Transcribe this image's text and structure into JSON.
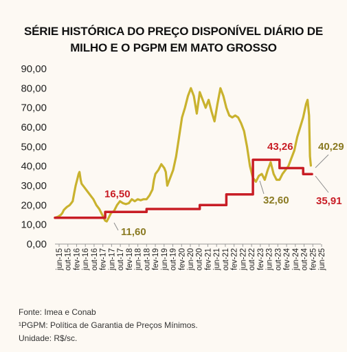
{
  "title_line1": "SÉRIE HISTÓRICA DO PREÇO DISPONÍVEL DIÁRIO DE",
  "title_line2": "MILHO E O PGPM EM MATO GROSSO",
  "footer": {
    "source": "Fonte: Imea e Conab",
    "note": "¹PGPM: Política de Garantia de Preços Mínimos.",
    "unit": "Unidade: R$/sc."
  },
  "chart_data": {
    "type": "line",
    "ylim": [
      0,
      90
    ],
    "yticks": [
      "0,00",
      "10,00",
      "20,00",
      "30,00",
      "40,00",
      "50,00",
      "60,00",
      "70,00",
      "80,00",
      "90,00"
    ],
    "xticks": [
      "jun-15",
      "out-15",
      "fev-16",
      "jun-16",
      "out-16",
      "fev-17",
      "jun-17",
      "out-17",
      "fev-18",
      "jun-18",
      "out-18",
      "fev-19",
      "jun-19",
      "out-19",
      "fev-20",
      "jun-20",
      "out-20",
      "fev-21",
      "jun-21",
      "out-21",
      "fev-22",
      "jun-22",
      "out-22",
      "fev-23",
      "jun-23",
      "out-23",
      "fev-24",
      "jun-24",
      "out-24",
      "fev-25",
      "jun-25"
    ],
    "colors": {
      "price": "#c9b22e",
      "pgpm": "#c81d25",
      "price_label": "#8a7a22",
      "pgpm_label": "#c81d25"
    },
    "series": [
      {
        "key": "price",
        "points": [
          [
            0,
            13.5
          ],
          [
            1,
            14
          ],
          [
            2,
            15
          ],
          [
            2.5,
            16
          ],
          [
            3,
            17.5
          ],
          [
            4,
            19
          ],
          [
            5,
            20
          ],
          [
            5.5,
            21
          ],
          [
            6,
            22
          ],
          [
            6.5,
            26
          ],
          [
            7,
            30
          ],
          [
            7.5,
            33
          ],
          [
            8,
            36
          ],
          [
            8.3,
            37
          ],
          [
            8.7,
            33
          ],
          [
            9,
            31
          ],
          [
            10,
            29
          ],
          [
            11,
            27
          ],
          [
            12,
            25
          ],
          [
            13,
            23
          ],
          [
            14,
            20
          ],
          [
            15,
            18
          ],
          [
            16,
            15
          ],
          [
            17,
            12
          ],
          [
            17.5,
            11.6
          ],
          [
            18,
            13
          ],
          [
            19,
            16
          ],
          [
            20,
            17
          ],
          [
            21,
            20
          ],
          [
            22,
            22
          ],
          [
            23,
            21
          ],
          [
            24,
            20.5
          ],
          [
            25,
            21
          ],
          [
            26,
            23
          ],
          [
            27,
            22
          ],
          [
            28,
            23
          ],
          [
            29,
            22.5
          ],
          [
            30,
            23
          ],
          [
            31,
            23
          ],
          [
            32,
            25
          ],
          [
            33,
            28
          ],
          [
            33.5,
            33
          ],
          [
            34,
            36
          ],
          [
            35,
            38
          ],
          [
            36,
            41
          ],
          [
            37,
            39
          ],
          [
            37.5,
            37
          ],
          [
            38,
            30
          ],
          [
            39,
            34
          ],
          [
            40,
            38
          ],
          [
            41,
            45
          ],
          [
            42,
            55
          ],
          [
            43,
            65
          ],
          [
            44,
            70
          ],
          [
            45,
            76
          ],
          [
            46,
            80
          ],
          [
            47,
            76
          ],
          [
            48,
            67
          ],
          [
            49,
            78
          ],
          [
            50,
            74
          ],
          [
            51,
            70
          ],
          [
            52,
            74
          ],
          [
            53,
            68
          ],
          [
            54,
            63
          ],
          [
            55,
            72
          ],
          [
            56,
            80
          ],
          [
            57,
            76
          ],
          [
            58,
            70
          ],
          [
            59,
            66
          ],
          [
            60,
            65
          ],
          [
            61,
            66
          ],
          [
            62,
            65
          ],
          [
            63,
            62
          ],
          [
            64,
            58
          ],
          [
            65,
            50
          ],
          [
            66,
            40
          ],
          [
            67,
            34
          ],
          [
            68,
            32
          ],
          [
            69,
            35
          ],
          [
            70,
            36
          ],
          [
            71,
            33
          ],
          [
            72,
            38
          ],
          [
            73,
            42
          ],
          [
            74,
            36
          ],
          [
            75,
            33
          ],
          [
            76,
            33
          ],
          [
            77,
            36
          ],
          [
            78,
            38
          ],
          [
            79,
            40
          ],
          [
            80,
            44
          ],
          [
            81,
            48
          ],
          [
            82,
            55
          ],
          [
            83,
            60
          ],
          [
            84,
            65
          ],
          [
            85,
            72
          ],
          [
            85.5,
            74
          ],
          [
            86,
            66
          ],
          [
            86.3,
            45
          ],
          [
            86.6,
            40.29
          ]
        ]
      },
      {
        "key": "pgpm",
        "points": [
          [
            0,
            13.5
          ],
          [
            17,
            13.5
          ],
          [
            17,
            16.5
          ],
          [
            31,
            16.5
          ],
          [
            31,
            18
          ],
          [
            49,
            18
          ],
          [
            49,
            20
          ],
          [
            58,
            20
          ],
          [
            58,
            25.5
          ],
          [
            67,
            25.5
          ],
          [
            67,
            43.26
          ],
          [
            76,
            43.26
          ],
          [
            76,
            39
          ],
          [
            84,
            39
          ],
          [
            84,
            35.91
          ],
          [
            87,
            35.91
          ]
        ]
      }
    ],
    "annotations": [
      {
        "series": "pgpm",
        "text": "16,50"
      },
      {
        "series": "price",
        "text": "11,60"
      },
      {
        "series": "pgpm",
        "text": "43,26"
      },
      {
        "series": "price",
        "text": "32,60"
      },
      {
        "series": "price",
        "text": "40,29"
      },
      {
        "series": "pgpm",
        "text": "35,91"
      }
    ]
  }
}
